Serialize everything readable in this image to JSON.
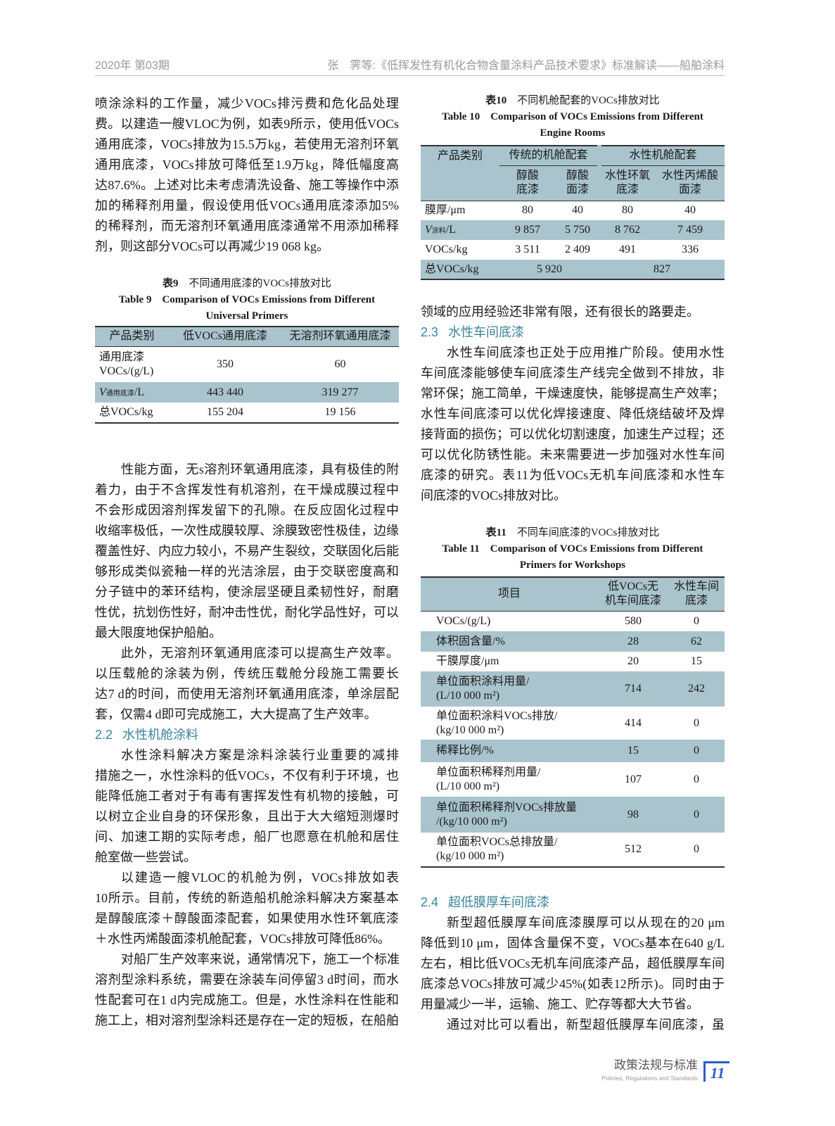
{
  "header": {
    "issue": "2020年 第03期",
    "article": "张　霁等:《低挥发性有机化合物含量涂料产品技术要求》标准解读——船舶涂料"
  },
  "left": {
    "p1": [
      "喷涂涂料的工作量，减少VOCs排污费和危化品处理",
      "费。以建造一艘VLOC为例，如表9所示，使用低VOCs",
      "通用底漆，VOCs排放为15.5万kg，若使用无溶剂环氧",
      "通用底漆，VOCs排放可降低至1.9万kg，降低幅度高",
      "达87.6%。上述对比未考虑清洗设备、施工等操作中添",
      "加的稀释剂用量，假设使用低VOCs通用底漆添加5%",
      "的稀释剂，而无溶剂环氧通用底漆通常不用添加稀释",
      "剂，则这部分VOCs可以再减少19 068 kg。"
    ],
    "p2": [
      "性能方面，无s溶剂环氧通用底漆，具有极佳的附",
      "着力，由于不含挥发性有机溶剂，在干燥成膜过程中",
      "不会形成因溶剂挥发留下的孔隙。在反应固化过程中",
      "收缩率极低，一次性成膜较厚、涂膜致密性极佳，边缘",
      "覆盖性好、内应力较小，不易产生裂纹，交联固化后能",
      "够形成类似瓷釉一样的光洁涂层，由于交联密度高和",
      "分子链中的苯环结构，使涂层坚硬且柔韧性好，耐磨",
      "性优，抗划伤性好，耐冲击性优，耐化学品性好，可以",
      "最大限度地保护船舶。"
    ],
    "p3": [
      "此外，无溶剂环氧通用底漆可以提高生产效率。",
      "以压载舱的涂装为例，传统压载舱分段施工需要长",
      "达7 d的时间，而使用无溶剂环氧通用底漆，单涂层配",
      "套，仅需4 d即可完成施工，大大提高了生产效率。"
    ],
    "sec22": {
      "num": "2.2",
      "title": "水性机舱涂料"
    },
    "p4": [
      "水性涂料解决方案是涂料涂装行业重要的减排",
      "措施之一，水性涂料的低VOCs，不仅有利于环境，也",
      "能降低施工者对于有毒有害挥发性有机物的接触，可",
      "以树立企业自身的环保形象，且出于大大缩短测爆时",
      "间、加速工期的实际考虑，船厂也愿意在机舱和居住",
      "舱室做一些尝试。"
    ],
    "p5": [
      "以建造一艘VLOC的机舱为例，VOCs排放如表",
      "10所示。目前，传统的新造船机舱涂料解决方案基本",
      "是醇酸底漆＋醇酸面漆配套，如果使用水性环氧底漆",
      "＋水性丙烯酸面漆机舱配套，VOCs排放可降低86%。"
    ],
    "p6": [
      "对船厂生产效率来说，通常情况下，施工一个标准",
      "溶剂型涂料系统，需要在涂装车间停留3 d时间，而水",
      "性配套可在1 d内完成施工。但是，水性涂料在性能和",
      "施工上，相对溶剂型涂料还是存在一定的短板，在船舶"
    ]
  },
  "table9": {
    "cap_zh_num": "表9",
    "cap_zh": "不同通用底漆的VOCs排放对比",
    "cap_en_1": "Table 9　Comparison of VOCs Emissions from Different",
    "cap_en_2": "Universal Primers",
    "headers": [
      "产品类别",
      "低VOCs通用底漆",
      "无溶剂环氧通用底漆"
    ],
    "rows": [
      {
        "label": "通用底漆",
        "label2": "VOCs/(g/L)",
        "a": "350",
        "b": "60"
      },
      {
        "label": "V",
        "sub": "通用底漆",
        "unit": "/L",
        "a": "443 440",
        "b": "319 277"
      },
      {
        "label": "总VOCs/kg",
        "a": "155 204",
        "b": "19 156"
      }
    ]
  },
  "table10": {
    "cap_zh_num": "表10",
    "cap_zh": "不同机舱配套的VOCs排放对比",
    "cap_en_1": "Table 10　Comparison of VOCs Emissions from Different",
    "cap_en_2": "Engine Rooms",
    "group1": "传统的机舱配套",
    "group2": "水性机舱配套",
    "rowhead": "产品类别",
    "cols": [
      [
        "醇酸",
        "底漆"
      ],
      [
        "醇酸",
        "面漆"
      ],
      [
        "水性环氧",
        "底漆"
      ],
      [
        "水性丙烯酸",
        "面漆"
      ]
    ],
    "rows": [
      {
        "label": "膜厚/μm",
        "v": [
          "80",
          "40",
          "80",
          "40"
        ]
      },
      {
        "label": "V",
        "sub": "涂料",
        "unit": "/L",
        "v": [
          "9 857",
          "5 750",
          "8 762",
          "7 459"
        ]
      },
      {
        "label": "VOCs/kg",
        "v": [
          "3 511",
          "2 409",
          "491",
          "336"
        ]
      }
    ],
    "total": {
      "label": "总VOCs/kg",
      "a": "5 920",
      "b": "827"
    }
  },
  "right": {
    "p1": [
      "领域的应用经验还非常有限，还有很长的路要走。"
    ],
    "sec23": {
      "num": "2.3",
      "title": "水性车间底漆"
    },
    "p2": [
      "水性车间底漆也正处于应用推广阶段。使用水性",
      "车间底漆能够使车间底漆生产线完全做到不排放，非",
      "常环保；施工简单，干燥速度快，能够提高生产效率；",
      "水性车间底漆可以优化焊接速度、降低烧结破坏及焊",
      "接背面的损伤；可以优化切割速度，加速生产过程；还",
      "可以优化防锈性能。未来需要进一步加强对水性车间",
      "底漆的研究。表11为低VOCs无机车间底漆和水性车",
      "间底漆的VOCs排放对比。"
    ],
    "sec24": {
      "num": "2.4",
      "title": "超低膜厚车间底漆"
    },
    "p3": [
      "新型超低膜厚车间底漆膜厚可以从现在的20 μm",
      "降低到10 μm，固体含量保不变，VOCs基本在640 g/L",
      "左右，相比低VOCs无机车间底漆产品，超低膜厚车间",
      "底漆总VOCs排放可减少45%(如表12所示)。同时由于",
      "用量减少一半，运输、施工、贮存等都大大节省。"
    ],
    "p4": [
      "通过对比可以看出，新型超低膜厚车间底漆，虽"
    ]
  },
  "table11": {
    "cap_zh_num": "表11",
    "cap_zh": "不同车间底漆的VOCs排放对比",
    "cap_en_1": "Table 11　Comparison of VOCs Emissions from Different",
    "cap_en_2": "Primers for Workshops",
    "headers": [
      "项目",
      "低VOCs无",
      "机车间底漆",
      "水性车间",
      "底漆"
    ],
    "rows": [
      {
        "l1": "VOCs/(g/L)",
        "a": "580",
        "b": "0"
      },
      {
        "l1": "体积固含量/%",
        "a": "28",
        "b": "62"
      },
      {
        "l1": "干膜厚度/μm",
        "a": "20",
        "b": "15"
      },
      {
        "l1": "单位面积涂料用量/",
        "l2": "(L/10 000 m²)",
        "a": "714",
        "b": "242"
      },
      {
        "l1": "单位面积涂料VOCs排放/",
        "l2": "(kg/10 000 m²)",
        "a": "414",
        "b": "0"
      },
      {
        "l1": "稀释比例/%",
        "a": "15",
        "b": "0"
      },
      {
        "l1": "单位面积稀释剂用量/",
        "l2": "(L/10 000 m²)",
        "a": "107",
        "b": "0"
      },
      {
        "l1": "单位面积稀释剂VOCs排放量",
        "l2": "/(kg/10 000 m²)",
        "a": "98",
        "b": "0"
      },
      {
        "l1": "单位面积VOCs总排放量/",
        "l2": "(kg/10 000 m²)",
        "a": "512",
        "b": "0"
      }
    ]
  },
  "footer": {
    "section_zh": "政策法规与标准",
    "section_en": "Policies, Regulations and Standards",
    "page": "11"
  },
  "colors": {
    "table_fill": "#a9c4cd",
    "section_heading": "#3b8399",
    "page_accent": "#2a5cc8"
  }
}
